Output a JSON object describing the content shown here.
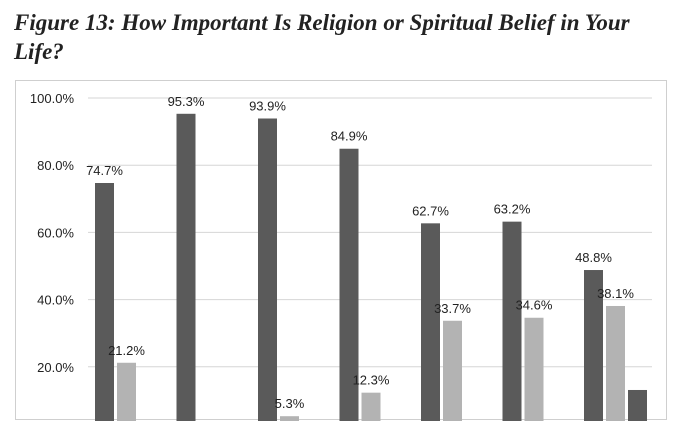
{
  "figure": {
    "title": "Figure 13: How Important Is Religion or Spiritual Belief in Your Life?"
  },
  "chart_data": {
    "type": "bar",
    "title": "Figure 13: How Important Is Religion or Spiritual Belief in Your Life?",
    "xlabel": "",
    "ylabel": "",
    "ylim": [
      0,
      100
    ],
    "y_ticks": [
      "20.0%",
      "40.0%",
      "60.0%",
      "80.0%",
      "100.0%"
    ],
    "y_tick_values": [
      20,
      40,
      60,
      80,
      100
    ],
    "grid": true,
    "colors": [
      "#5a5a5a",
      "#b3b3b3",
      "#5a5a5a"
    ],
    "groups": [
      {
        "bars": [
          {
            "value": 74.7,
            "label": "74.7%"
          },
          {
            "value": 21.2,
            "label": "21.2%"
          }
        ]
      },
      {
        "bars": [
          {
            "value": 95.3,
            "label": "95.3%"
          }
        ]
      },
      {
        "bars": [
          {
            "value": 93.9,
            "label": "93.9%"
          },
          {
            "value": 5.3,
            "label": "5.3%"
          }
        ]
      },
      {
        "bars": [
          {
            "value": 84.9,
            "label": "84.9%"
          },
          {
            "value": 12.3,
            "label": "12.3%"
          }
        ]
      },
      {
        "bars": [
          {
            "value": 62.7,
            "label": "62.7%"
          },
          {
            "value": 33.7,
            "label": "33.7%"
          }
        ]
      },
      {
        "bars": [
          {
            "value": 63.2,
            "label": "63.2%"
          },
          {
            "value": 34.6,
            "label": "34.6%"
          }
        ]
      },
      {
        "bars": [
          {
            "value": 48.8,
            "label": "48.8%"
          },
          {
            "value": 38.1,
            "label": "38.1%"
          },
          {
            "value": 13.1,
            "label": ""
          }
        ]
      }
    ]
  }
}
